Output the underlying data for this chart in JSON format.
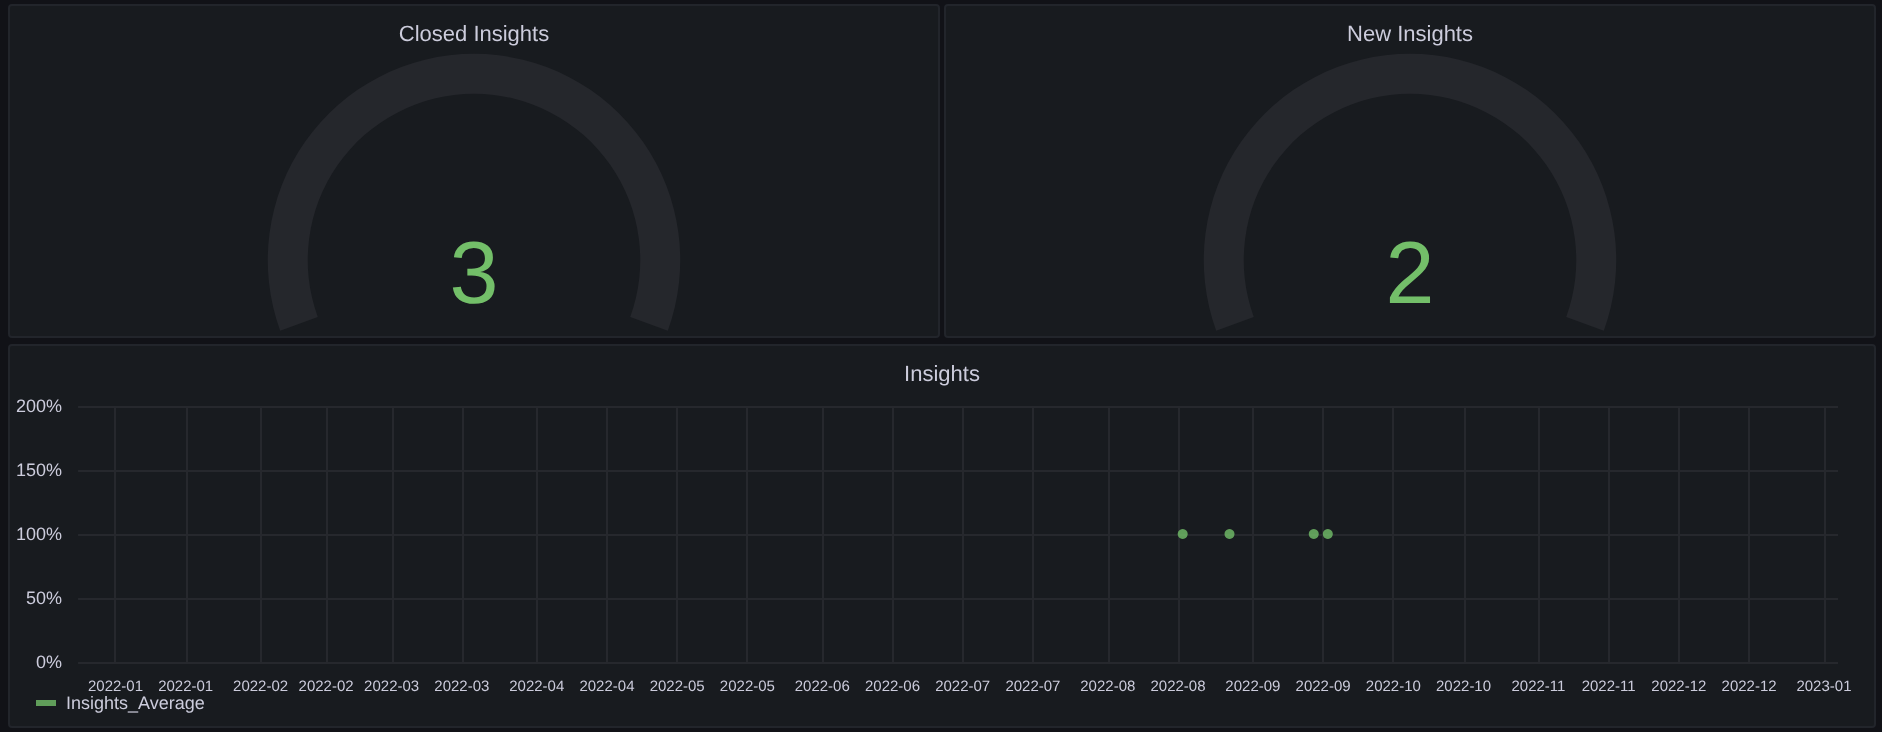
{
  "chart_data": [
    {
      "type": "other",
      "title": "Closed Insights",
      "value_labels": [
        "3"
      ]
    },
    {
      "type": "other",
      "title": "New Insights",
      "value_labels": [
        "2"
      ]
    },
    {
      "type": "scatter",
      "title": "Insights",
      "marker": "circle",
      "grid": true,
      "legend": "bottom left",
      "series": [
        {
          "name": "Insights_Average",
          "color": "#73bf69",
          "x": [
            "2022-08-17",
            "2022-08-27",
            "2022-09-14",
            "2022-09-17"
          ],
          "values": [
            100,
            100,
            100,
            100
          ]
        }
      ],
      "xlim": [
        "2021-12-24",
        "2023-01-04"
      ],
      "xticks": [
        {
          "value": "2022-01-01",
          "label": "2022-01"
        },
        {
          "value": "2022-01-16",
          "label": "2022-01"
        },
        {
          "value": "2022-02-01",
          "label": "2022-02"
        },
        {
          "value": "2022-02-15",
          "label": "2022-02"
        },
        {
          "value": "2022-03-01",
          "label": "2022-03"
        },
        {
          "value": "2022-03-16",
          "label": "2022-03"
        },
        {
          "value": "2022-04-01",
          "label": "2022-04"
        },
        {
          "value": "2022-04-16",
          "label": "2022-04"
        },
        {
          "value": "2022-05-01",
          "label": "2022-05"
        },
        {
          "value": "2022-05-16",
          "label": "2022-05"
        },
        {
          "value": "2022-06-01",
          "label": "2022-06"
        },
        {
          "value": "2022-06-16",
          "label": "2022-06"
        },
        {
          "value": "2022-07-01",
          "label": "2022-07"
        },
        {
          "value": "2022-07-16",
          "label": "2022-07"
        },
        {
          "value": "2022-08-01",
          "label": "2022-08"
        },
        {
          "value": "2022-08-16",
          "label": "2022-08"
        },
        {
          "value": "2022-09-01",
          "label": "2022-09"
        },
        {
          "value": "2022-09-16",
          "label": "2022-09"
        },
        {
          "value": "2022-10-01",
          "label": "2022-10"
        },
        {
          "value": "2022-10-16",
          "label": "2022-10"
        },
        {
          "value": "2022-11-01",
          "label": "2022-11"
        },
        {
          "value": "2022-11-16",
          "label": "2022-11"
        },
        {
          "value": "2022-12-01",
          "label": "2022-12"
        },
        {
          "value": "2022-12-16",
          "label": "2022-12"
        },
        {
          "value": "2023-01-01",
          "label": "2023-01"
        }
      ],
      "ylim": [
        0,
        200
      ],
      "yticks": [
        {
          "value": 0,
          "label": "0%"
        },
        {
          "value": 50,
          "label": "50%"
        },
        {
          "value": 100,
          "label": "100%"
        },
        {
          "value": 150,
          "label": "150%"
        },
        {
          "value": 200,
          "label": "200%"
        }
      ]
    }
  ]
}
